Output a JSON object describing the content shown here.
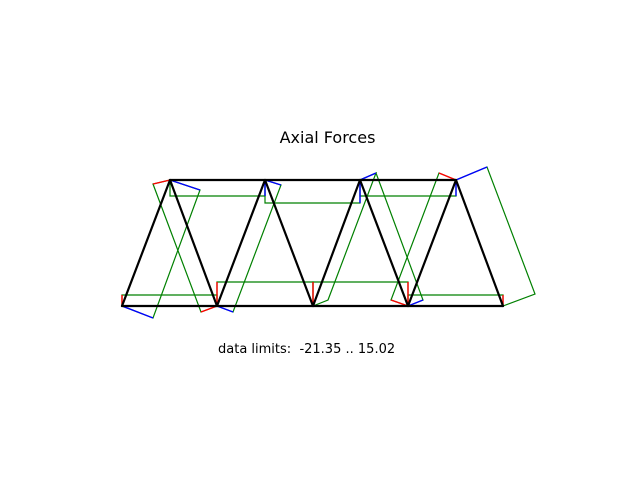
{
  "diagram": {
    "title": "Axial Forces",
    "limits_label": "data limits:",
    "limits_min": "-21.35",
    "limits_separator": "..",
    "limits_max": "15.02",
    "colors": {
      "member": "#000000",
      "diagram": "#008000",
      "compression": "#ff0000",
      "tension": "#0000ff"
    }
  }
}
